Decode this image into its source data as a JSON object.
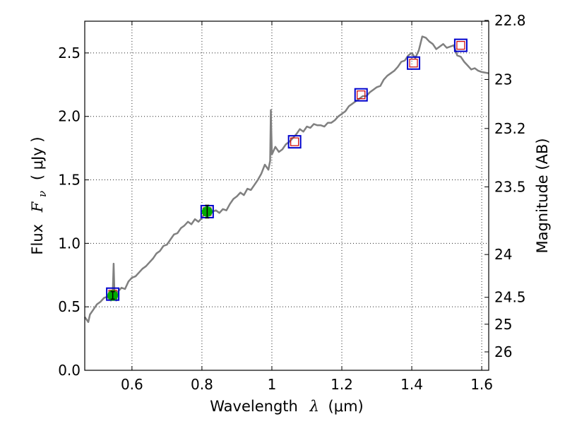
{
  "chart_data": {
    "type": "line",
    "title": "",
    "xlabel_text": "Wavelength",
    "xlabel_symbol": "λ",
    "xlabel_unit": "(μm)",
    "ylabel_text": "Flux",
    "ylabel_symbol": "F",
    "ylabel_sub": "ν",
    "ylabel_unit": "( μJy )",
    "y2label": "Magnitude (AB)",
    "xlim": [
      0.465,
      1.62
    ],
    "ylim": [
      0.0,
      2.75
    ],
    "grid": true,
    "x_ticks": [
      0.6,
      0.8,
      1.0,
      1.2,
      1.4,
      1.6
    ],
    "x_tick_labels": [
      "0.6",
      "0.8",
      "1",
      "1.2",
      "1.4",
      "1.6"
    ],
    "y_ticks": [
      0.0,
      0.5,
      1.0,
      1.5,
      2.0,
      2.5
    ],
    "y_tick_labels": [
      "0.0",
      "0.5",
      "1.0",
      "1.5",
      "2.0",
      "2.5"
    ],
    "y2_ticks": [
      {
        "flux": 2.756,
        "label": "22.8"
      },
      {
        "flux": 2.291,
        "label": "23"
      },
      {
        "flux": 1.905,
        "label": "23.2"
      },
      {
        "flux": 1.445,
        "label": "23.5"
      },
      {
        "flux": 0.912,
        "label": "24"
      },
      {
        "flux": 0.575,
        "label": "24.5"
      },
      {
        "flux": 0.363,
        "label": "25"
      },
      {
        "flux": 0.145,
        "label": "26"
      }
    ],
    "series": [
      {
        "style": "spectrum-line",
        "color": "#808080",
        "x": [
          0.465,
          0.47,
          0.475,
          0.48,
          0.49,
          0.5,
          0.51,
          0.52,
          0.53,
          0.535,
          0.54,
          0.545,
          0.5475,
          0.55,
          0.555,
          0.56,
          0.57,
          0.58,
          0.59,
          0.6,
          0.61,
          0.62,
          0.63,
          0.64,
          0.65,
          0.66,
          0.67,
          0.68,
          0.69,
          0.7,
          0.71,
          0.72,
          0.73,
          0.74,
          0.75,
          0.76,
          0.77,
          0.78,
          0.79,
          0.8,
          0.81,
          0.82,
          0.83,
          0.84,
          0.85,
          0.86,
          0.87,
          0.88,
          0.89,
          0.9,
          0.91,
          0.92,
          0.93,
          0.94,
          0.95,
          0.96,
          0.97,
          0.98,
          0.99,
          0.995,
          0.997,
          1.0,
          1.005,
          1.01,
          1.02,
          1.03,
          1.04,
          1.05,
          1.06,
          1.07,
          1.08,
          1.09,
          1.1,
          1.11,
          1.12,
          1.13,
          1.14,
          1.15,
          1.16,
          1.17,
          1.18,
          1.19,
          1.2,
          1.21,
          1.22,
          1.23,
          1.24,
          1.25,
          1.26,
          1.27,
          1.28,
          1.29,
          1.3,
          1.31,
          1.32,
          1.33,
          1.34,
          1.35,
          1.36,
          1.37,
          1.38,
          1.39,
          1.4,
          1.41,
          1.42,
          1.43,
          1.44,
          1.45,
          1.46,
          1.47,
          1.48,
          1.49,
          1.5,
          1.51,
          1.52,
          1.53,
          1.54,
          1.55,
          1.56,
          1.57,
          1.58,
          1.59,
          1.6,
          1.62
        ],
        "y": [
          0.42,
          0.4,
          0.38,
          0.44,
          0.48,
          0.52,
          0.54,
          0.57,
          0.58,
          0.56,
          0.55,
          0.6,
          0.84,
          0.6,
          0.55,
          0.62,
          0.65,
          0.64,
          0.7,
          0.73,
          0.74,
          0.77,
          0.8,
          0.82,
          0.85,
          0.88,
          0.92,
          0.94,
          0.98,
          0.99,
          1.03,
          1.07,
          1.08,
          1.12,
          1.14,
          1.17,
          1.15,
          1.19,
          1.17,
          1.2,
          1.25,
          1.22,
          1.25,
          1.26,
          1.24,
          1.27,
          1.26,
          1.31,
          1.35,
          1.37,
          1.4,
          1.38,
          1.43,
          1.42,
          1.46,
          1.5,
          1.55,
          1.62,
          1.58,
          1.65,
          2.05,
          1.7,
          1.73,
          1.76,
          1.72,
          1.74,
          1.78,
          1.8,
          1.83,
          1.86,
          1.9,
          1.88,
          1.92,
          1.91,
          1.94,
          1.93,
          1.93,
          1.92,
          1.95,
          1.95,
          1.97,
          2.0,
          2.02,
          2.04,
          2.08,
          2.1,
          2.12,
          2.14,
          2.16,
          2.16,
          2.19,
          2.21,
          2.23,
          2.24,
          2.29,
          2.32,
          2.34,
          2.36,
          2.39,
          2.43,
          2.44,
          2.48,
          2.5,
          2.46,
          2.52,
          2.63,
          2.62,
          2.59,
          2.57,
          2.53,
          2.55,
          2.57,
          2.54,
          2.55,
          2.56,
          2.48,
          2.47,
          2.43,
          2.4,
          2.37,
          2.38,
          2.36,
          2.35,
          2.34
        ]
      },
      {
        "style": "open-square-markers",
        "edge_color": "#0000cc",
        "inner_color": "#cc0000",
        "x": [
          0.545,
          0.815,
          1.065,
          1.255,
          1.405,
          1.54
        ],
        "y": [
          0.6,
          1.25,
          1.8,
          2.17,
          2.42,
          2.56
        ]
      },
      {
        "style": "filled-circle-markers-with-errorbars",
        "color": "#00aa00",
        "x": [
          0.545,
          0.815
        ],
        "y": [
          0.59,
          1.25
        ],
        "yerr": [
          0.03,
          0.05
        ]
      }
    ]
  }
}
